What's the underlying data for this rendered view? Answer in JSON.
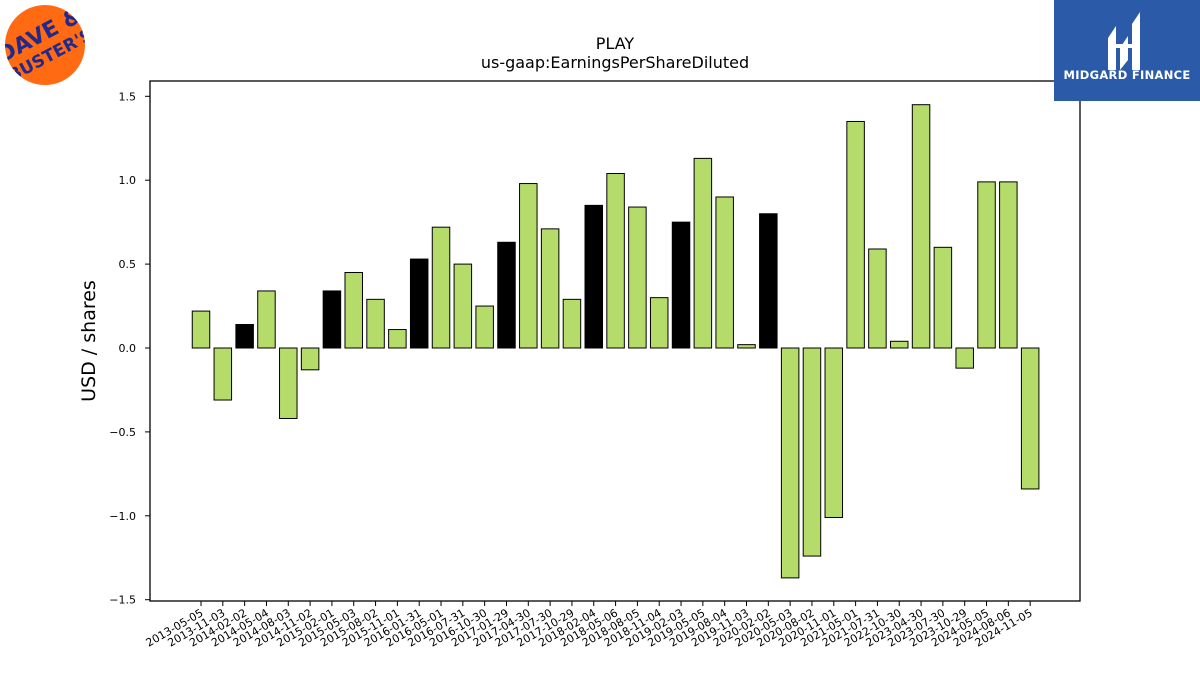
{
  "header": {
    "title": "PLAY",
    "subtitle": "us-gaap:EarningsPerShareDiluted"
  },
  "logos": {
    "left_brand": "DAVE & BUSTER'S",
    "right_brand": "MIDGARD FINANCE"
  },
  "colors": {
    "bar_default": "#b5dc6a",
    "bar_highlight": "#000000",
    "edge": "#000000",
    "logo_left_bg": "#ff6a13",
    "logo_left_text": "#1f2a8c",
    "logo_right_bg": "#2b5ba8"
  },
  "chart_data": {
    "type": "bar",
    "title": "PLAY",
    "subtitle": "us-gaap:EarningsPerShareDiluted",
    "ylabel": "USD / shares",
    "xlabel": "",
    "ylim": [
      -1.5,
      1.6
    ],
    "yticks": [
      1.5,
      1.0,
      0.5,
      0.0,
      -0.5,
      -1.0,
      -1.5
    ],
    "ytick_labels": [
      "1.5",
      "1.0",
      "0.5",
      "0.0",
      "−0.5",
      "−1.0",
      "−1.5"
    ],
    "grid": false,
    "legend": "none",
    "categories": [
      "2013-05-05",
      "2013-11-03",
      "2014-02-02",
      "2014-05-04",
      "2014-08-03",
      "2014-11-02",
      "2015-02-01",
      "2015-05-03",
      "2015-08-02",
      "2015-11-01",
      "2016-01-31",
      "2016-05-01",
      "2016-07-31",
      "2016-10-30",
      "2017-01-29",
      "2017-04-30",
      "2017-07-30",
      "2017-10-29",
      "2018-02-04",
      "2018-05-06",
      "2018-08-05",
      "2018-11-04",
      "2019-02-03",
      "2019-05-05",
      "2019-08-04",
      "2019-11-03",
      "2020-02-02",
      "2020-05-03",
      "2020-08-02",
      "2020-11-01",
      "2021-05-01",
      "2021-07-31",
      "2022-10-30",
      "2023-04-30",
      "2023-07-30",
      "2023-10-29",
      "2024-05-05",
      "2024-08-06",
      "2024-11-05"
    ],
    "values": [
      0.22,
      -0.31,
      0.14,
      0.34,
      -0.42,
      -0.13,
      0.34,
      0.45,
      0.29,
      0.11,
      0.53,
      0.72,
      0.5,
      0.25,
      0.63,
      0.98,
      0.71,
      0.29,
      0.85,
      1.04,
      0.84,
      0.3,
      0.75,
      1.13,
      0.9,
      0.02,
      0.8,
      -1.37,
      -1.24,
      -1.01,
      1.35,
      0.59,
      0.04,
      1.45,
      0.6,
      -0.12,
      0.99,
      0.99,
      -0.84
    ],
    "highlight": [
      false,
      false,
      true,
      false,
      false,
      false,
      true,
      false,
      false,
      false,
      true,
      false,
      false,
      false,
      true,
      false,
      false,
      false,
      true,
      false,
      false,
      false,
      true,
      false,
      false,
      false,
      true,
      false,
      false,
      false,
      false,
      false,
      false,
      false,
      false,
      false,
      false,
      false,
      false
    ]
  }
}
